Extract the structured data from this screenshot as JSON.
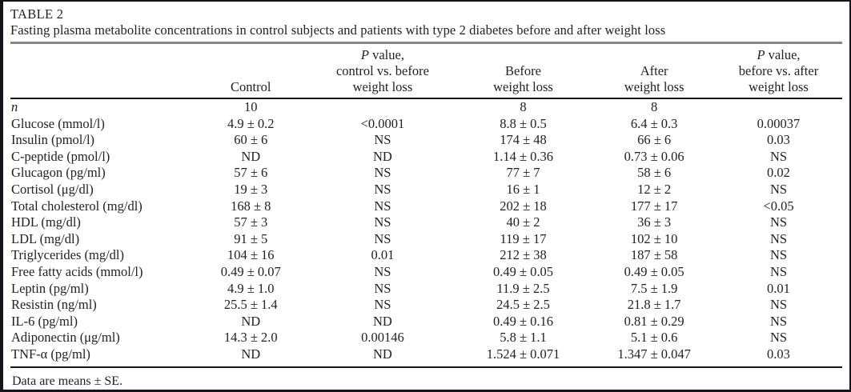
{
  "colors": {
    "text": "#21212a",
    "border": "#15151c",
    "gray_rule": "#85858d",
    "background": "#ffffff"
  },
  "table": {
    "label": "TABLE 2",
    "caption": "Fasting plasma metabolite concentrations in control subjects and patients with type 2 diabetes before and after weight loss",
    "columns": [
      {
        "lines": [
          ""
        ]
      },
      {
        "lines": [
          "Control"
        ]
      },
      {
        "lines": [
          "P value,",
          "control vs. before",
          "weight loss"
        ],
        "italic_p": true
      },
      {
        "lines": [
          "Before",
          "weight loss"
        ]
      },
      {
        "lines": [
          "After",
          "weight loss"
        ]
      },
      {
        "lines": [
          "P value,",
          "before vs. after",
          "weight loss"
        ],
        "italic_p": true
      }
    ],
    "rows": [
      {
        "label": "n",
        "label_italic": true,
        "values": [
          "10",
          "",
          "8",
          "8",
          ""
        ]
      },
      {
        "label": "Glucose (mmol/l)",
        "label_italic": false,
        "values": [
          "4.9 ± 0.2",
          "<0.0001",
          "8.8 ± 0.5",
          "6.4 ± 0.3",
          "0.00037"
        ]
      },
      {
        "label": "Insulin (pmol/l)",
        "label_italic": false,
        "values": [
          "60 ± 6",
          "NS",
          "174 ± 48",
          "66 ± 6",
          "0.03"
        ]
      },
      {
        "label": "C-peptide (pmol/l)",
        "label_italic": false,
        "values": [
          "ND",
          "ND",
          "1.14 ± 0.36",
          "0.73 ± 0.06",
          "NS"
        ]
      },
      {
        "label": "Glucagon (pg/ml)",
        "label_italic": false,
        "values": [
          "57 ± 6",
          "NS",
          "77 ± 7",
          "58 ± 6",
          "0.02"
        ]
      },
      {
        "label": "Cortisol (μg/dl)",
        "label_italic": false,
        "values": [
          "19 ± 3",
          "NS",
          "16 ± 1",
          "12 ± 2",
          "NS"
        ]
      },
      {
        "label": "Total cholesterol (mg/dl)",
        "label_italic": false,
        "values": [
          "168 ± 8",
          "NS",
          "202 ± 18",
          "177 ± 17",
          "<0.05"
        ]
      },
      {
        "label": "HDL (mg/dl)",
        "label_italic": false,
        "values": [
          "57 ± 3",
          "NS",
          "40 ± 2",
          "36 ± 3",
          "NS"
        ]
      },
      {
        "label": "LDL (mg/dl)",
        "label_italic": false,
        "values": [
          "91 ± 5",
          "NS",
          "119 ± 17",
          "102 ± 10",
          "NS"
        ]
      },
      {
        "label": "Triglycerides (mg/dl)",
        "label_italic": false,
        "values": [
          "104 ± 16",
          "0.01",
          "212 ± 38",
          "187 ± 58",
          "NS"
        ]
      },
      {
        "label": "Free fatty acids (mmol/l)",
        "label_italic": false,
        "values": [
          "0.49 ± 0.07",
          "NS",
          "0.49 ± 0.05",
          "0.49 ± 0.05",
          "NS"
        ]
      },
      {
        "label": "Leptin (pg/ml)",
        "label_italic": false,
        "values": [
          "4.9 ± 1.0",
          "NS",
          "11.9 ± 2.5",
          "7.5 ± 1.9",
          "0.01"
        ]
      },
      {
        "label": "Resistin (ng/ml)",
        "label_italic": false,
        "values": [
          "25.5 ± 1.4",
          "NS",
          "24.5 ± 2.5",
          "21.8 ± 1.7",
          "NS"
        ]
      },
      {
        "label": "IL-6 (pg/ml)",
        "label_italic": false,
        "values": [
          "ND",
          "ND",
          "0.49 ± 0.16",
          "0.81 ± 0.29",
          "NS"
        ]
      },
      {
        "label": "Adiponectin (μg/ml)",
        "label_italic": false,
        "values": [
          "14.3 ± 2.0",
          "0.00146",
          "5.8 ± 1.1",
          "5.1 ± 0.6",
          "NS"
        ]
      },
      {
        "label": "TNF-α (pg/ml)",
        "label_italic": false,
        "values": [
          "ND",
          "ND",
          "1.524 ± 0.071",
          "1.347 ± 0.047",
          "0.03"
        ]
      }
    ],
    "footnote": "Data are means ± SE."
  }
}
